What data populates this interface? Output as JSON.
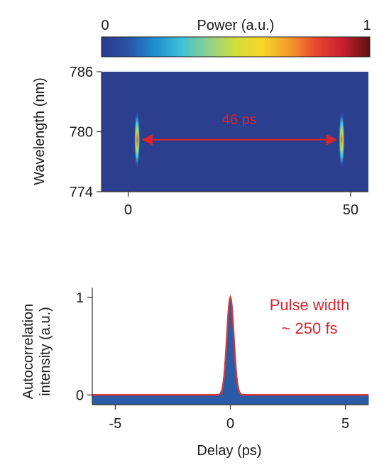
{
  "colors": {
    "background": "#2b3f8e",
    "annotation": "#d8242c",
    "fit_line": "#d23a3a",
    "ac_fill": "#2b5aa7",
    "axis": "#333333",
    "colormap": [
      "#2b3a8c",
      "#2a52a6",
      "#1f8fcf",
      "#3fc2d8",
      "#8fd08a",
      "#d2de3a",
      "#f7d628",
      "#f59a2a",
      "#e8462e",
      "#c81e2e",
      "#5a1212"
    ]
  },
  "chart_data": [
    {
      "type": "heatmap",
      "colorbar": {
        "label": "Power (a.u.)",
        "min_label": "0",
        "max_label": "1",
        "range": [
          0,
          1
        ]
      },
      "ylabel": "Wavelength (nm)",
      "xlabel": "",
      "xlim": [
        -6,
        54
      ],
      "ylim": [
        774,
        786
      ],
      "xticks": [
        {
          "value": 0,
          "label": "0"
        },
        {
          "value": 50,
          "label": "50"
        }
      ],
      "yticks": [
        {
          "value": 786,
          "label": "786"
        },
        {
          "value": 780,
          "label": "780"
        },
        {
          "value": 774,
          "label": "774"
        }
      ],
      "pulses": [
        {
          "time": 2,
          "center_wavelength": 779.2,
          "peak_power": 1.0
        },
        {
          "time": 48,
          "center_wavelength": 779.2,
          "peak_power": 1.0
        }
      ],
      "annotation": {
        "text": "46 ps",
        "from_time": 2,
        "to_time": 48,
        "wavelength": 779.2
      }
    },
    {
      "type": "area",
      "xlabel": "Delay (ps)",
      "ylabel_line1": "Autocorrelation",
      "ylabel_line2": "intensity (a.u.)",
      "xlim": [
        -6,
        6
      ],
      "ylim": [
        -0.1,
        1.1
      ],
      "xticks": [
        {
          "value": -5,
          "label": "-5"
        },
        {
          "value": 0,
          "label": "0"
        },
        {
          "value": 5,
          "label": "5"
        }
      ],
      "yticks": [
        {
          "value": 0,
          "label": "0"
        },
        {
          "value": 1,
          "label": "1"
        }
      ],
      "fit": {
        "center": 0,
        "peak": 1,
        "width_ps": 0.35
      },
      "annotation": {
        "line1": "Pulse width",
        "line2": "~ 250 fs"
      }
    }
  ]
}
